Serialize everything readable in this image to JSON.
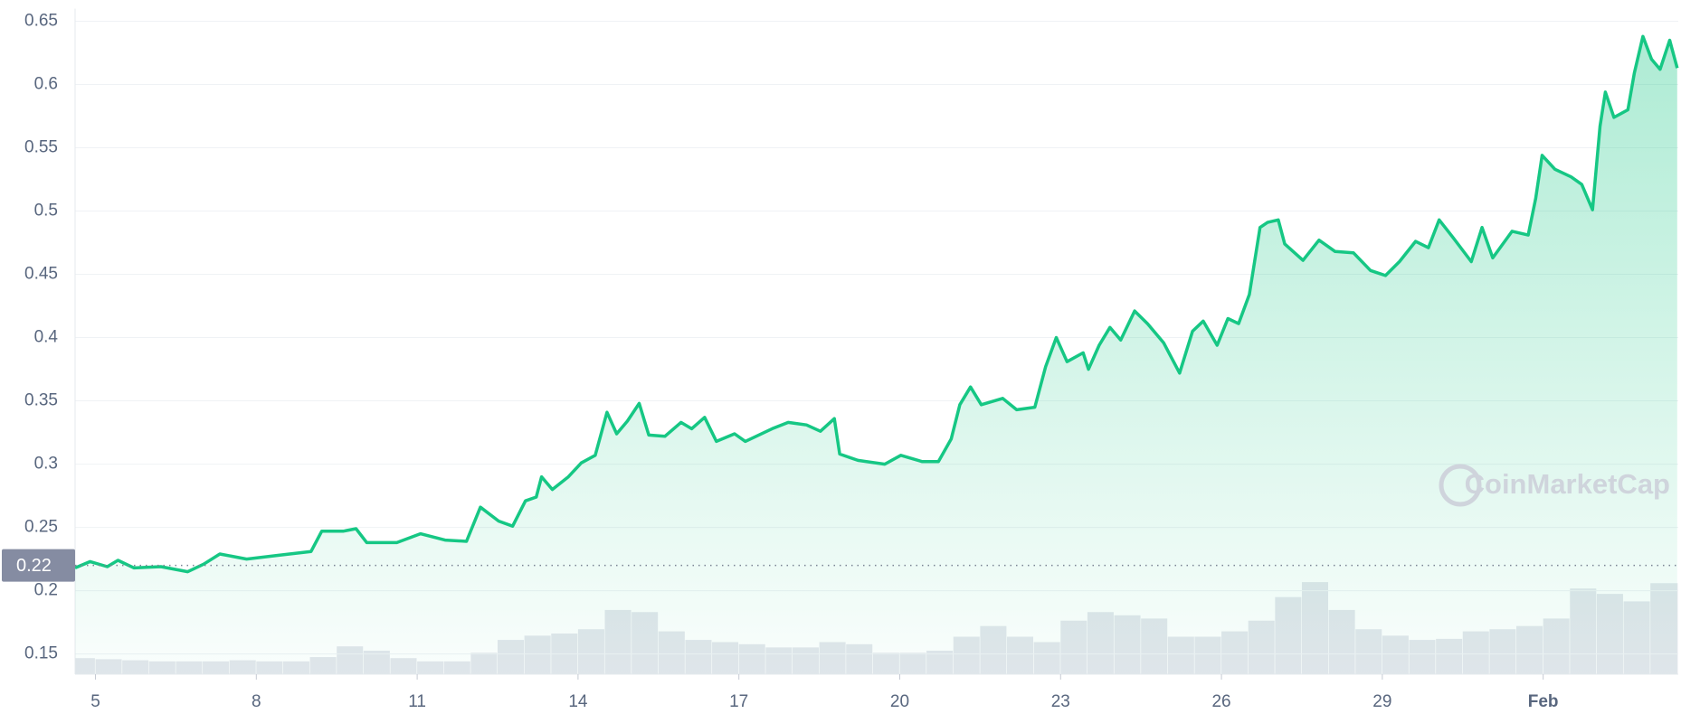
{
  "chart_data": {
    "type": "line",
    "color": "#16c784",
    "x": [
      4.62,
      4.9,
      5.22,
      5.42,
      5.72,
      6.22,
      6.72,
      7.02,
      7.32,
      7.82,
      8.42,
      9.02,
      9.22,
      9.62,
      9.86,
      10.06,
      10.62,
      11.06,
      11.52,
      11.92,
      12.18,
      12.52,
      12.78,
      13.02,
      13.22,
      13.32,
      13.52,
      13.82,
      14.06,
      14.32,
      14.54,
      14.72,
      14.92,
      15.14,
      15.32,
      15.62,
      15.92,
      16.12,
      16.36,
      16.58,
      16.92,
      17.12,
      17.62,
      17.92,
      18.26,
      18.52,
      18.78,
      18.88,
      19.22,
      19.72,
      20.02,
      20.42,
      20.72,
      20.96,
      21.12,
      21.32,
      21.52,
      21.92,
      22.18,
      22.52,
      22.72,
      22.92,
      23.12,
      23.42,
      23.52,
      23.72,
      23.92,
      24.12,
      24.38,
      24.62,
      24.92,
      25.22,
      25.46,
      25.66,
      25.92,
      26.12,
      26.32,
      26.52,
      26.72,
      26.86,
      27.06,
      27.18,
      27.52,
      27.82,
      28.12,
      28.46,
      28.78,
      29.06,
      29.32,
      29.62,
      29.86,
      30.06,
      30.32,
      30.66,
      30.86,
      31.06,
      31.42,
      31.72,
      31.86,
      31.98,
      32.22,
      32.52,
      32.72,
      32.92,
      33.06,
      33.16,
      33.32,
      33.58,
      33.7,
      33.86,
      34.02,
      34.18,
      34.36,
      34.5
    ],
    "values": [
      0.218,
      0.223,
      0.219,
      0.224,
      0.218,
      0.219,
      0.215,
      0.221,
      0.229,
      0.225,
      0.228,
      0.231,
      0.247,
      0.247,
      0.249,
      0.238,
      0.238,
      0.245,
      0.24,
      0.239,
      0.266,
      0.255,
      0.251,
      0.271,
      0.274,
      0.29,
      0.28,
      0.29,
      0.301,
      0.307,
      0.341,
      0.324,
      0.334,
      0.348,
      0.323,
      0.322,
      0.333,
      0.328,
      0.337,
      0.318,
      0.324,
      0.318,
      0.328,
      0.333,
      0.331,
      0.326,
      0.336,
      0.308,
      0.303,
      0.3,
      0.307,
      0.302,
      0.302,
      0.32,
      0.347,
      0.361,
      0.347,
      0.352,
      0.343,
      0.345,
      0.377,
      0.4,
      0.381,
      0.388,
      0.375,
      0.394,
      0.408,
      0.398,
      0.421,
      0.411,
      0.396,
      0.372,
      0.405,
      0.413,
      0.394,
      0.415,
      0.411,
      0.434,
      0.487,
      0.491,
      0.493,
      0.474,
      0.461,
      0.477,
      0.468,
      0.467,
      0.453,
      0.449,
      0.46,
      0.476,
      0.471,
      0.493,
      0.479,
      0.46,
      0.487,
      0.463,
      0.484,
      0.481,
      0.51,
      0.544,
      0.533,
      0.527,
      0.521,
      0.501,
      0.567,
      0.594,
      0.574,
      0.58,
      0.609,
      0.638,
      0.62,
      0.612,
      0.635,
      0.613
    ],
    "volume": {
      "x": [
        4.75,
        5.25,
        5.75,
        6.25,
        6.75,
        7.25,
        7.75,
        8.25,
        8.75,
        9.25,
        9.75,
        10.25,
        10.75,
        11.25,
        11.75,
        12.25,
        12.75,
        13.25,
        13.75,
        14.25,
        14.75,
        15.25,
        15.75,
        16.25,
        16.75,
        17.25,
        17.75,
        18.25,
        18.75,
        19.25,
        19.75,
        20.25,
        20.75,
        21.25,
        21.75,
        22.25,
        22.75,
        23.25,
        23.75,
        24.25,
        24.75,
        25.25,
        25.75,
        26.25,
        26.75,
        27.25,
        27.75,
        28.25,
        28.75,
        29.25,
        29.75,
        30.25,
        30.75,
        31.25,
        31.75,
        32.25,
        32.75,
        33.25,
        33.75,
        34.25
      ],
      "values": [
        15,
        14,
        13,
        12,
        12,
        12,
        13,
        12,
        12,
        16,
        26,
        22,
        15,
        12,
        12,
        20,
        32,
        36,
        38,
        42,
        60,
        58,
        40,
        32,
        30,
        28,
        25,
        25,
        30,
        28,
        20,
        20,
        22,
        35,
        45,
        35,
        30,
        50,
        58,
        55,
        52,
        35,
        35,
        40,
        50,
        72,
        86,
        60,
        42,
        36,
        32,
        33,
        40,
        42,
        45,
        52,
        80,
        75,
        68,
        85
      ]
    },
    "xlim": [
      4.62,
      34.52
    ],
    "ylim": [
      0.134,
      0.66
    ],
    "xticks": [
      5,
      8,
      11,
      14,
      17,
      20,
      23,
      26,
      29,
      {
        "value": 32,
        "label": "Feb"
      }
    ],
    "yticks": [
      0.15,
      0.2,
      0.25,
      0.3,
      0.35,
      0.4,
      0.45,
      0.5,
      0.55,
      0.6,
      0.65
    ],
    "reference_line": {
      "value": 0.22,
      "label": "0.22"
    },
    "grid": true,
    "watermark": "CoinMarketCap"
  }
}
